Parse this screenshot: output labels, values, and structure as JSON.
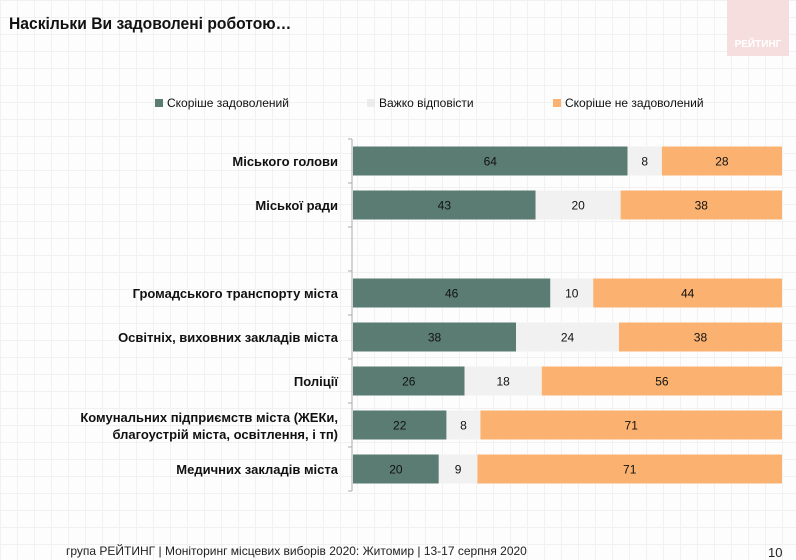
{
  "title": "Наскільки Ви задоволені роботою…",
  "logo_text": "РЕЙТИНГ",
  "footer": "група РЕЙТИНГ | Моніторинг місцевих виборів 2020: Житомир | 13-17 серпня 2020",
  "page_number": "10",
  "chart_data": {
    "type": "bar",
    "orientation": "horizontal-stacked-100",
    "title": "Наскільки Ви задоволені роботою…",
    "categories": [
      "Міського голови",
      "Міської ради",
      "",
      "Громадського транспорту міста",
      "Освітніх, виховних закладів міста",
      "Поліції",
      "Комунальних підприємств  міста (ЖЕКи, благоустрій міста, освітлення, і тп)",
      "Медичних закладів міста"
    ],
    "series": [
      {
        "name": "Скоріше задоволений",
        "color": "#5b7c72",
        "values": [
          64,
          43,
          null,
          46,
          38,
          26,
          22,
          20
        ]
      },
      {
        "name": "Важко відповісти",
        "color": "#f1f1f1",
        "values": [
          8,
          20,
          null,
          10,
          24,
          18,
          8,
          9
        ]
      },
      {
        "name": "Скоріше не задоволений",
        "color": "#fbb270",
        "values": [
          28,
          38,
          null,
          44,
          38,
          56,
          71,
          71
        ]
      }
    ],
    "legend": "top",
    "grid": false
  }
}
